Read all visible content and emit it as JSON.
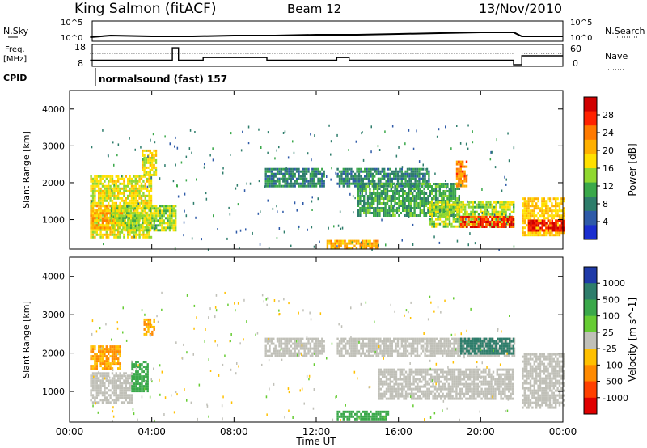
{
  "header": {
    "station": "King Salmon (fitACF)",
    "beam": "Beam 12",
    "date": "13/Nov/2010"
  },
  "noise_panel": {
    "left_label": "N.Sky",
    "right_label": "N.Search",
    "ticks": [
      "10^5",
      "10^0"
    ]
  },
  "freq_panel": {
    "left_label_1": "Freq.",
    "left_label_2": "[MHz]",
    "left_ticks": [
      "18",
      "8"
    ],
    "right_label": "Nave",
    "right_ticks": [
      "60",
      "0"
    ]
  },
  "cpid": {
    "label": "CPID",
    "text": "normalsound (fast) 157"
  },
  "x_axis": {
    "title": "Time UT",
    "ticks": [
      "00:00",
      "04:00",
      "08:00",
      "12:00",
      "16:00",
      "20:00",
      "00:00"
    ]
  },
  "power_colorbar": {
    "title": "Power [dB]",
    "ticks": [
      "28",
      "24",
      "20",
      "16",
      "12",
      "8",
      "4"
    ],
    "colors": [
      "#d00000",
      "#ff2200",
      "#ff7a00",
      "#ffb000",
      "#ffe000",
      "#90d830",
      "#3aa84a",
      "#2e7d6b",
      "#2e5aa8",
      "#1a2ecf"
    ]
  },
  "velocity_colorbar": {
    "title": "Velocity [m s^-1]",
    "ticks": [
      "1000",
      "500",
      "100",
      "25",
      "-25",
      "-100",
      "-500",
      "-1000"
    ],
    "colors": [
      "#1f3aa8",
      "#2e7d6b",
      "#3aa84a",
      "#66cc33",
      "#c0c0b8",
      "#ffc000",
      "#ff8a00",
      "#ff4000",
      "#e00000"
    ]
  },
  "chart_data": [
    {
      "type": "line",
      "name": "noise",
      "x_range_hours": [
        0,
        24
      ],
      "series": [
        {
          "name": "N.Sky",
          "x": [
            1,
            2,
            4,
            6,
            8,
            10,
            12,
            14,
            16,
            18,
            20,
            21.6,
            22,
            24
          ],
          "y": [
            1,
            3,
            2,
            2,
            3,
            3,
            4,
            4,
            5,
            6,
            7,
            7,
            2,
            2
          ]
        }
      ]
    },
    {
      "type": "line",
      "name": "frequency",
      "ylim": [
        8,
        18
      ],
      "x": [
        1.0,
        5.0,
        5.0,
        5.3,
        5.3,
        6.5,
        6.5,
        9.6,
        9.6,
        13.0,
        13.0,
        13.6,
        13.6,
        21.6,
        21.6,
        22.0,
        22.0,
        24.0
      ],
      "y": [
        10.5,
        10.5,
        17.5,
        17.5,
        10.5,
        10.5,
        12.0,
        12.0,
        10.5,
        10.5,
        12.0,
        12.0,
        10.5,
        10.5,
        8.0,
        8.0,
        13.0,
        13.0
      ]
    },
    {
      "type": "heatmap",
      "name": "power",
      "x_unit": "hours UT",
      "x_range": [
        0,
        24
      ],
      "y_label": "Slant Range [km]",
      "y_ticks": [
        1000,
        2000,
        3000,
        4000
      ],
      "y_range": [
        200,
        4500
      ],
      "regions": [
        {
          "t": [
            1.0,
            4.0
          ],
          "r": [
            500,
            2200
          ],
          "v": 16
        },
        {
          "t": [
            1.0,
            2.6
          ],
          "r": [
            800,
            1400
          ],
          "v": 20
        },
        {
          "t": [
            2.0,
            5.2
          ],
          "r": [
            700,
            1400
          ],
          "v": 14
        },
        {
          "t": [
            3.5,
            4.2
          ],
          "r": [
            2200,
            2900
          ],
          "v": 16
        },
        {
          "t": [
            9.5,
            12.4
          ],
          "r": [
            1900,
            2400
          ],
          "v": 8
        },
        {
          "t": [
            13.0,
            17.5
          ],
          "r": [
            1900,
            2400
          ],
          "v": 8
        },
        {
          "t": [
            14.0,
            19.0
          ],
          "r": [
            1100,
            2000
          ],
          "v": 10
        },
        {
          "t": [
            17.5,
            21.6
          ],
          "r": [
            800,
            1500
          ],
          "v": 14
        },
        {
          "t": [
            19.0,
            21.6
          ],
          "r": [
            800,
            1100
          ],
          "v": 26
        },
        {
          "t": [
            18.8,
            19.3
          ],
          "r": [
            1900,
            2600
          ],
          "v": 22
        },
        {
          "t": [
            22.0,
            24.0
          ],
          "r": [
            600,
            1600
          ],
          "v": 18
        },
        {
          "t": [
            22.3,
            24.0
          ],
          "r": [
            700,
            1000
          ],
          "v": 27
        },
        {
          "t": [
            12.5,
            15.0
          ],
          "r": [
            250,
            450
          ],
          "v": 20
        }
      ]
    },
    {
      "type": "heatmap",
      "name": "velocity",
      "x_unit": "hours UT",
      "x_range": [
        0,
        24
      ],
      "y_label": "Slant Range [km]",
      "y_ticks": [
        1000,
        2000,
        3000,
        4000
      ],
      "y_range": [
        200,
        4500
      ],
      "regions": [
        {
          "t": [
            1.0,
            3.0
          ],
          "r": [
            700,
            1500
          ],
          "v": 0
        },
        {
          "t": [
            1.0,
            2.5
          ],
          "r": [
            1600,
            2200
          ],
          "v": -100
        },
        {
          "t": [
            3.0,
            3.8
          ],
          "r": [
            1000,
            1800
          ],
          "v": 100
        },
        {
          "t": [
            3.6,
            4.1
          ],
          "r": [
            2500,
            2900
          ],
          "v": -100
        },
        {
          "t": [
            9.5,
            12.4
          ],
          "r": [
            1900,
            2400
          ],
          "v": 0
        },
        {
          "t": [
            13.0,
            21.6
          ],
          "r": [
            1900,
            2400
          ],
          "v": 0
        },
        {
          "t": [
            15.0,
            21.6
          ],
          "r": [
            800,
            1600
          ],
          "v": 0
        },
        {
          "t": [
            19.0,
            21.6
          ],
          "r": [
            2000,
            2400
          ],
          "v": 500
        },
        {
          "t": [
            22.0,
            24.0
          ],
          "r": [
            600,
            2000
          ],
          "v": 0
        },
        {
          "t": [
            13.0,
            15.5
          ],
          "r": [
            250,
            500
          ],
          "v": 100
        }
      ]
    }
  ]
}
